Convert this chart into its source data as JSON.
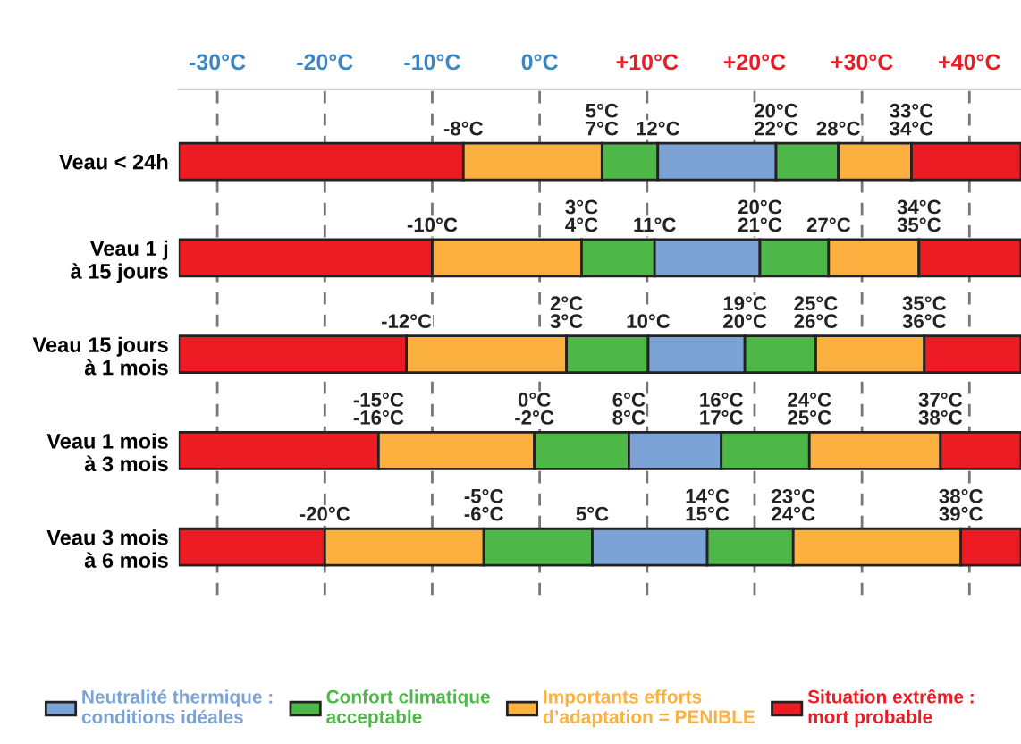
{
  "chart_data": {
    "type": "bar",
    "orientation": "horizontal",
    "categories": [
      "Veau < 24h",
      "Veau 1 j\nà 15 jours",
      "Veau 15 jours\nà 1 mois",
      "Veau 1 mois\nà 3 mois",
      "Veau 3 mois\nà 6 mois"
    ],
    "series": [
      {
        "name": "Situation extrême :\nmort probable",
        "color": "#ed1c24",
        "base": [
          -33.6,
          -33.6,
          -33.6,
          -33.6,
          -33.6
        ],
        "values": [
          26.5,
          23.6,
          21.2,
          18.6,
          13.6
        ]
      },
      {
        "name": "Importants efforts\nd’adaptation = PENIBLE",
        "color": "#fbb040",
        "base": [
          -7.1,
          -10.0,
          -12.4,
          -15.0,
          -20.0
        ],
        "values": [
          12.9,
          13.9,
          14.9,
          14.5,
          14.8
        ]
      },
      {
        "name": "Confort climatique\nacceptable",
        "color": "#4db848",
        "base": [
          5.8,
          3.9,
          2.5,
          -0.5,
          -5.2
        ],
        "values": [
          5.2,
          6.8,
          7.6,
          8.8,
          10.1
        ]
      },
      {
        "name": "Neutralité thermique :\nconditions idéales",
        "color": "#7ba3d6",
        "base": [
          11.0,
          10.7,
          10.1,
          8.3,
          4.9
        ],
        "values": [
          11.0,
          9.8,
          9.0,
          8.6,
          10.7
        ]
      },
      {
        "color": "#4db848",
        "base": [
          22.0,
          20.5,
          19.1,
          16.9,
          15.6
        ],
        "values": [
          5.8,
          6.4,
          6.6,
          8.2,
          8.0
        ]
      },
      {
        "color": "#fbb040",
        "base": [
          27.8,
          26.9,
          25.7,
          25.1,
          23.6
        ],
        "values": [
          6.8,
          8.4,
          10.1,
          12.2,
          15.6
        ]
      },
      {
        "color": "#ed1c24",
        "base": [
          34.6,
          35.3,
          35.8,
          37.3,
          39.2
        ],
        "values": [
          10.2,
          9.5,
          9.0,
          7.5,
          5.6
        ]
      }
    ],
    "xlim": [
      -33.6,
      44.8
    ],
    "xticks": [
      {
        "value": -30,
        "label": "-30°C"
      },
      {
        "value": -20,
        "label": "-20°C"
      },
      {
        "value": -10,
        "label": "-10°C"
      },
      {
        "value": 0,
        "label": "0°C"
      },
      {
        "value": 10,
        "label": "+10°C"
      },
      {
        "value": 20,
        "label": "+20°C"
      },
      {
        "value": 30,
        "label": "+30°C"
      },
      {
        "value": 40,
        "label": "+40°C"
      }
    ],
    "grid": "x",
    "legend": "bottom",
    "annotations": [
      "-8°C",
      "5°C\n7°C",
      "12°C",
      "20°C\n22°C",
      "28°C",
      "33°C\n34°C",
      "-10°C",
      "3°C\n4°C",
      "11°C",
      "20°C\n21°C",
      "27°C",
      "34°C\n35°C",
      "-12°C",
      "2°C\n3°C",
      "10°C",
      "19°C\n20°C",
      "25°C\n26°C",
      "35°C\n36°C",
      "-15°C\n-16°C",
      "0°C\n-2°C",
      "6°C\n8°C",
      "16°C\n17°C",
      "24°C\n25°C",
      "37°C\n38°C",
      "-20°C",
      "-5°C\n-6°C",
      "5°C",
      "14°C\n15°C",
      "23°C\n24°C",
      "38°C\n39°C"
    ]
  }
}
